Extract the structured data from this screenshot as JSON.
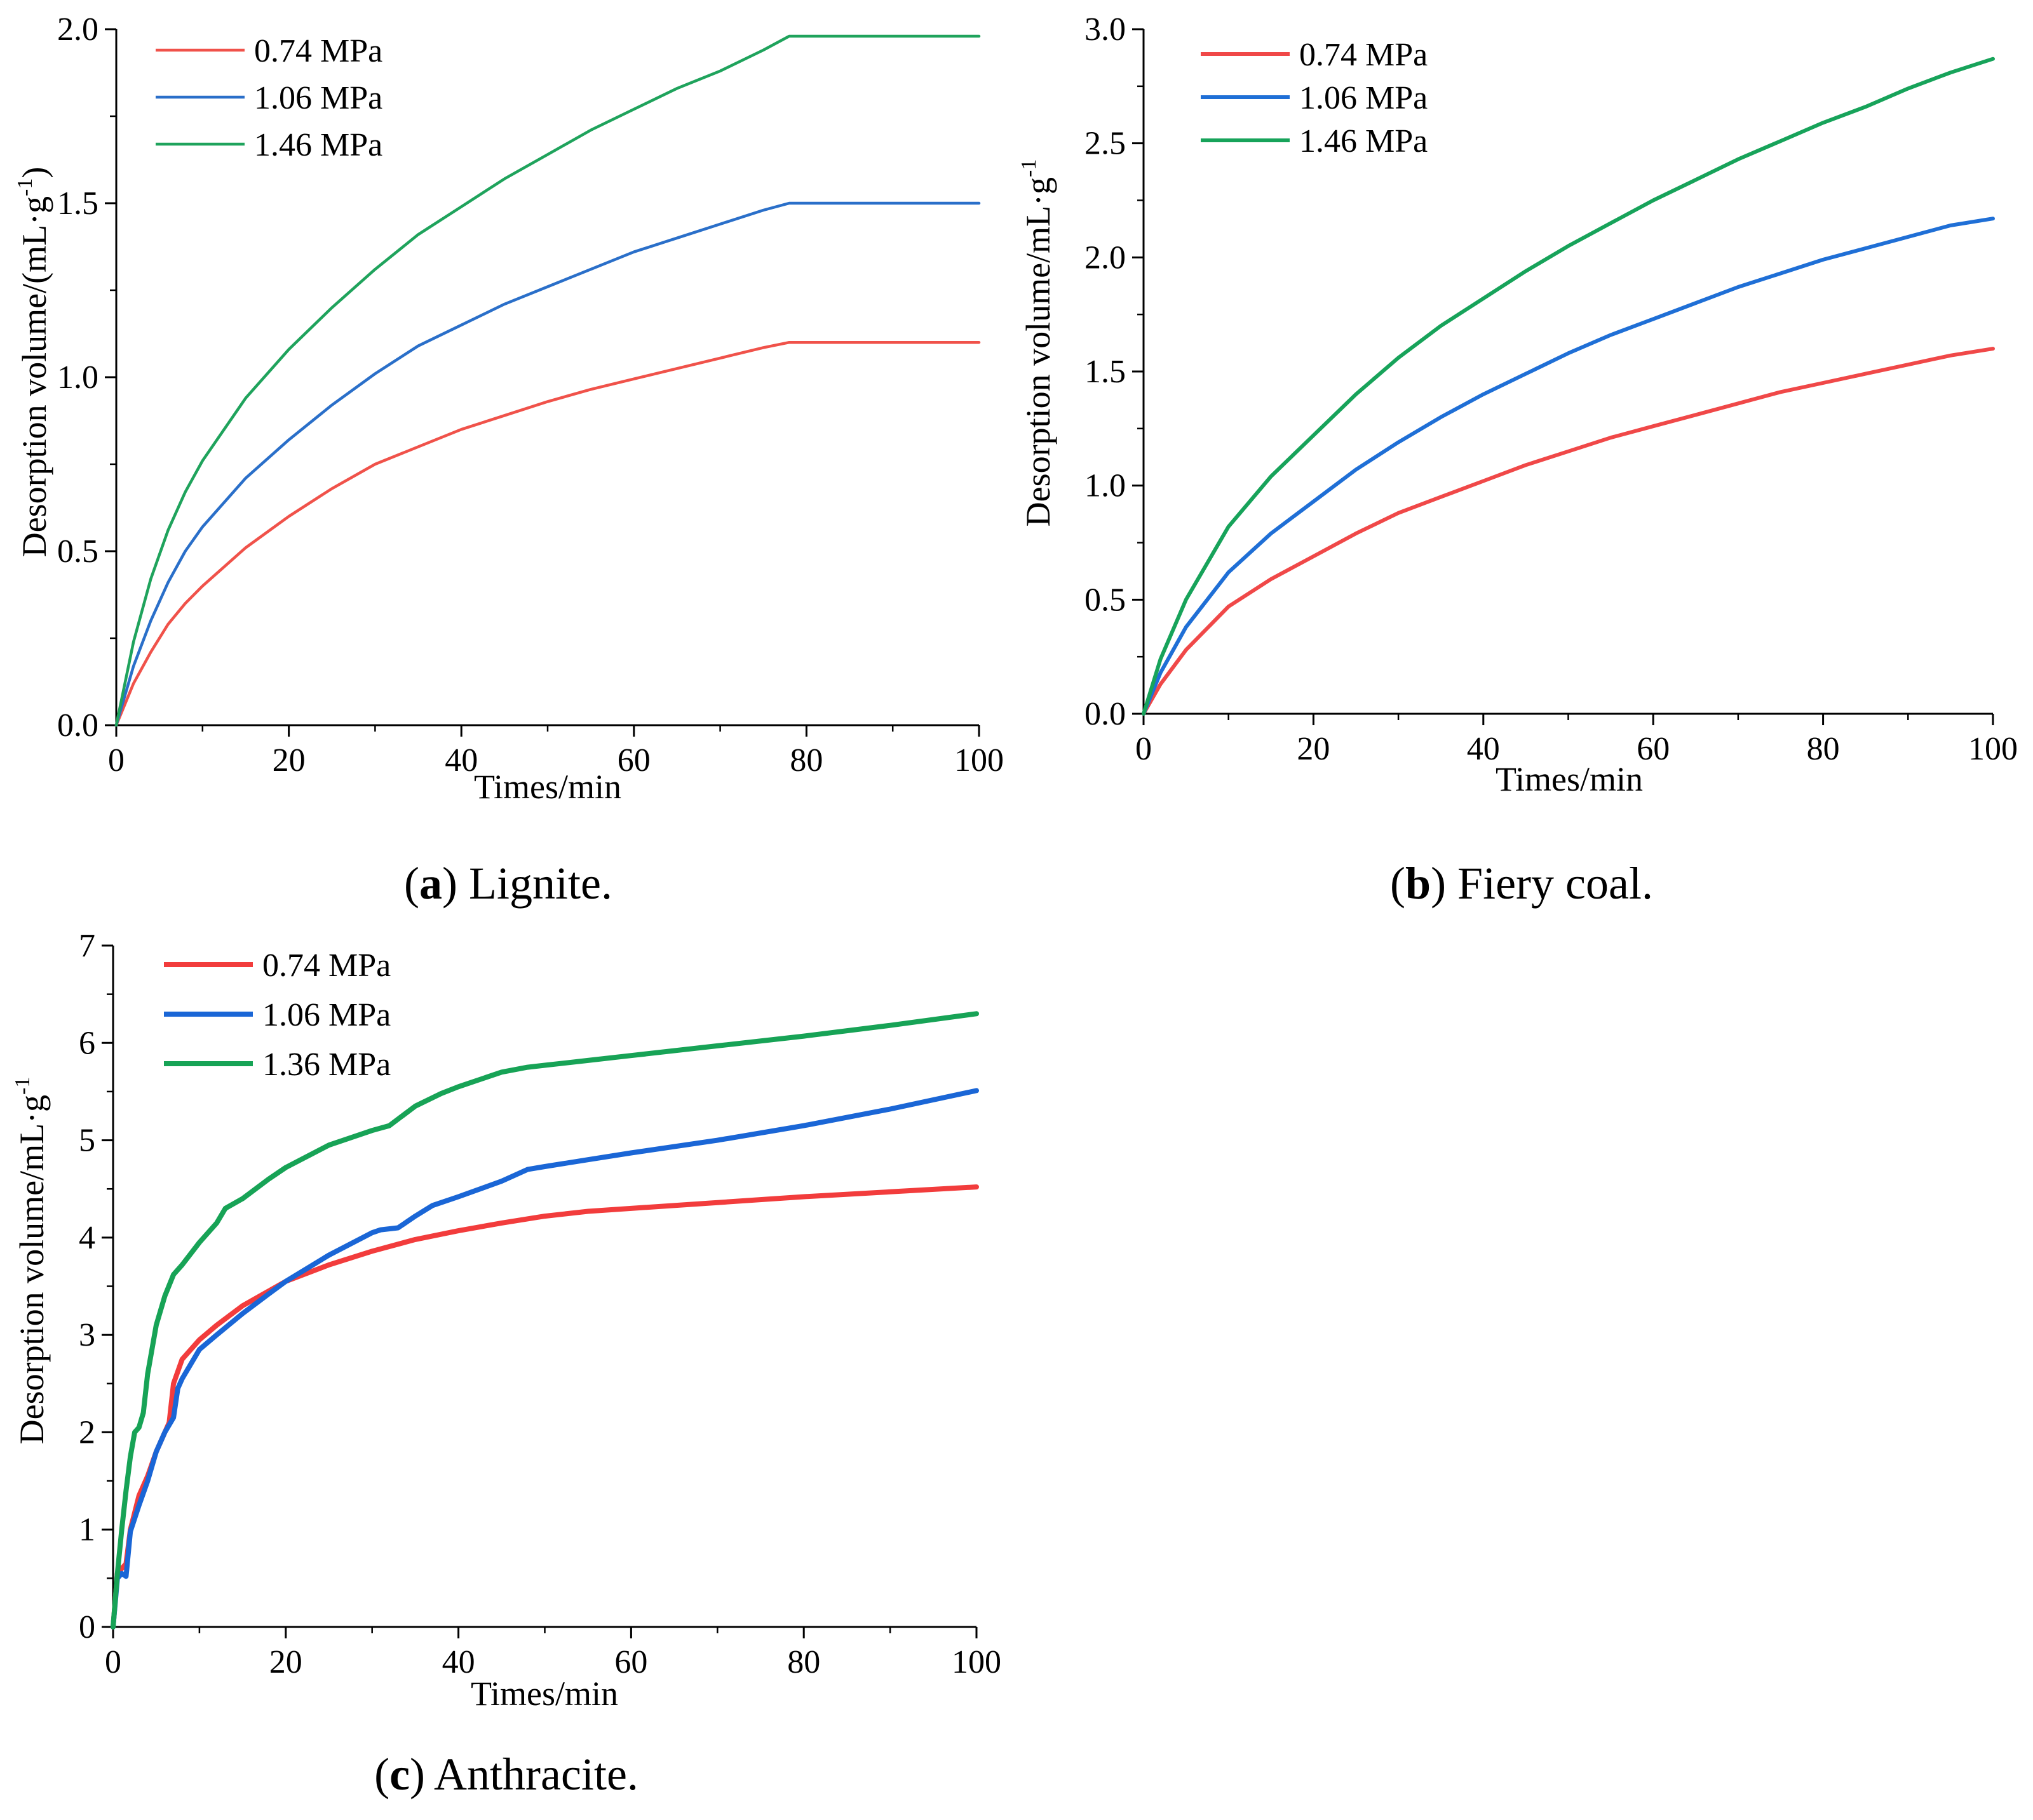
{
  "figure": {
    "panels": [
      "a",
      "b",
      "c"
    ]
  },
  "chart_data": [
    {
      "id": "a",
      "type": "line",
      "caption_letter": "a",
      "caption_text": " Lignite.",
      "caption_open": "(",
      "caption_close": ")",
      "xlabel": "Times/min",
      "ylabel": "Desorption volume/(mL·g",
      "ylabel_sup": "-1",
      "ylabel_close": ")",
      "xlim": [
        0,
        100
      ],
      "ylim": [
        0,
        2.0
      ],
      "xticks": [
        0,
        20,
        40,
        60,
        80,
        100
      ],
      "yticks": [
        0.0,
        0.5,
        1.0,
        1.5,
        2.0
      ],
      "ytick_labels": [
        "0.0",
        "0.5",
        "1.0",
        "1.5",
        "2.0"
      ],
      "legend_position": "top-left",
      "series": [
        {
          "name": "0.74 MPa",
          "color": "#f0524a",
          "x": [
            0,
            2,
            4,
            6,
            8,
            10,
            15,
            20,
            25,
            30,
            35,
            40,
            45,
            50,
            55,
            60,
            65,
            70,
            75,
            78,
            85,
            90,
            100
          ],
          "y": [
            0,
            0.12,
            0.21,
            0.29,
            0.35,
            0.4,
            0.51,
            0.6,
            0.68,
            0.75,
            0.8,
            0.85,
            0.89,
            0.93,
            0.965,
            0.995,
            1.025,
            1.055,
            1.085,
            1.1,
            1.1,
            1.1,
            1.1
          ]
        },
        {
          "name": "1.06 MPa",
          "color": "#2a6fc9",
          "x": [
            0,
            2,
            4,
            6,
            8,
            10,
            15,
            20,
            25,
            30,
            35,
            40,
            45,
            50,
            55,
            60,
            65,
            70,
            75,
            78,
            85,
            90,
            100
          ],
          "y": [
            0,
            0.17,
            0.3,
            0.41,
            0.5,
            0.57,
            0.71,
            0.82,
            0.92,
            1.01,
            1.09,
            1.15,
            1.21,
            1.26,
            1.31,
            1.36,
            1.4,
            1.44,
            1.48,
            1.5,
            1.5,
            1.5,
            1.5
          ]
        },
        {
          "name": "1.46 MPa",
          "color": "#1fa35c",
          "x": [
            0,
            2,
            4,
            6,
            8,
            10,
            15,
            20,
            25,
            30,
            35,
            40,
            45,
            50,
            55,
            60,
            65,
            70,
            75,
            78,
            85,
            90,
            100
          ],
          "y": [
            0,
            0.24,
            0.42,
            0.56,
            0.67,
            0.76,
            0.94,
            1.08,
            1.2,
            1.31,
            1.41,
            1.49,
            1.57,
            1.64,
            1.71,
            1.77,
            1.83,
            1.88,
            1.94,
            1.98,
            1.98,
            1.98,
            1.98
          ]
        }
      ]
    },
    {
      "id": "b",
      "type": "line",
      "caption_letter": "b",
      "caption_text": " Fiery coal.",
      "caption_open": "(",
      "caption_close": ")",
      "xlabel": "Times/min",
      "ylabel": "Desorption volume/mL·g",
      "ylabel_sup": "-1",
      "ylabel_close": "",
      "xlim": [
        0,
        100
      ],
      "ylim": [
        0,
        3.0
      ],
      "xticks": [
        0,
        20,
        40,
        60,
        80,
        100
      ],
      "yticks": [
        0.0,
        0.5,
        1.0,
        1.5,
        2.0,
        2.5,
        3.0
      ],
      "ytick_labels": [
        "0.0",
        "0.5",
        "1.0",
        "1.5",
        "2.0",
        "2.5",
        "3.0"
      ],
      "legend_position": "top-left",
      "series": [
        {
          "name": "0.74 MPa",
          "color": "#f04848",
          "x": [
            0,
            2,
            5,
            10,
            15,
            20,
            25,
            30,
            35,
            40,
            45,
            50,
            55,
            60,
            65,
            70,
            75,
            80,
            85,
            90,
            95,
            100
          ],
          "y": [
            0,
            0.13,
            0.28,
            0.47,
            0.59,
            0.69,
            0.79,
            0.88,
            0.95,
            1.02,
            1.09,
            1.15,
            1.21,
            1.26,
            1.31,
            1.36,
            1.41,
            1.45,
            1.49,
            1.53,
            1.57,
            1.6
          ]
        },
        {
          "name": "1.06 MPa",
          "color": "#1f6fd6",
          "x": [
            0,
            2,
            5,
            10,
            15,
            20,
            25,
            30,
            35,
            40,
            45,
            50,
            55,
            60,
            65,
            70,
            75,
            80,
            85,
            90,
            95,
            100
          ],
          "y": [
            0,
            0.18,
            0.38,
            0.62,
            0.79,
            0.93,
            1.07,
            1.19,
            1.3,
            1.4,
            1.49,
            1.58,
            1.66,
            1.73,
            1.8,
            1.87,
            1.93,
            1.99,
            2.04,
            2.09,
            2.14,
            2.17
          ]
        },
        {
          "name": "1.46 MPa",
          "color": "#17a35a",
          "x": [
            0,
            2,
            5,
            10,
            15,
            20,
            25,
            30,
            35,
            40,
            45,
            50,
            55,
            60,
            65,
            70,
            75,
            80,
            85,
            90,
            95,
            100
          ],
          "y": [
            0,
            0.24,
            0.5,
            0.82,
            1.04,
            1.22,
            1.4,
            1.56,
            1.7,
            1.82,
            1.94,
            2.05,
            2.15,
            2.25,
            2.34,
            2.43,
            2.51,
            2.59,
            2.66,
            2.74,
            2.81,
            2.87
          ]
        }
      ]
    },
    {
      "id": "c",
      "type": "line",
      "caption_letter": "c",
      "caption_text": " Anthracite.",
      "caption_open": "(",
      "caption_close": ")",
      "xlabel": "Times/min",
      "ylabel": "Desorption volume/mL·g",
      "ylabel_sup": "-1",
      "ylabel_close": "",
      "xlim": [
        0,
        100
      ],
      "ylim": [
        0,
        7
      ],
      "xticks": [
        0,
        20,
        40,
        60,
        80,
        100
      ],
      "yticks": [
        0,
        1,
        2,
        3,
        4,
        5,
        6,
        7
      ],
      "ytick_labels": [
        "0",
        "1",
        "2",
        "3",
        "4",
        "5",
        "6",
        "7"
      ],
      "legend_position": "top-left",
      "series": [
        {
          "name": "0.74 MPa",
          "color": "#f23c3c",
          "x": [
            0,
            0.5,
            1,
            1.5,
            2,
            3,
            4,
            5,
            6,
            6.5,
            7,
            8,
            10,
            12,
            15,
            18,
            20,
            25,
            30,
            35,
            40,
            45,
            50,
            55,
            60,
            70,
            80,
            90,
            100
          ],
          "y": [
            0,
            0.55,
            0.6,
            0.65,
            1.0,
            1.35,
            1.55,
            1.8,
            2.0,
            2.1,
            2.5,
            2.75,
            2.95,
            3.1,
            3.3,
            3.45,
            3.55,
            3.72,
            3.86,
            3.98,
            4.07,
            4.15,
            4.22,
            4.27,
            4.3,
            4.36,
            4.42,
            4.47,
            4.52
          ]
        },
        {
          "name": "1.06 MPa",
          "color": "#1a66d6",
          "x": [
            0,
            0.5,
            1,
            1.5,
            2,
            3,
            4,
            5,
            6,
            7,
            7.5,
            8,
            10,
            12,
            15,
            18,
            20,
            25,
            30,
            31,
            33,
            35,
            37,
            40,
            45,
            48,
            50,
            55,
            60,
            70,
            80,
            90,
            100
          ],
          "y": [
            0,
            0.5,
            0.55,
            0.52,
            0.98,
            1.25,
            1.5,
            1.8,
            2.0,
            2.15,
            2.45,
            2.55,
            2.85,
            3.0,
            3.22,
            3.42,
            3.55,
            3.82,
            4.05,
            4.08,
            4.1,
            4.22,
            4.33,
            4.42,
            4.58,
            4.7,
            4.73,
            4.8,
            4.87,
            5.0,
            5.15,
            5.32,
            5.51
          ]
        },
        {
          "name": "1.36 MPa",
          "color": "#17a356",
          "x": [
            0,
            0.5,
            1,
            1.5,
            2,
            2.5,
            3,
            3.5,
            4,
            5,
            6,
            7,
            8,
            10,
            12,
            13,
            15,
            18,
            20,
            25,
            30,
            32,
            35,
            38,
            40,
            45,
            48,
            50,
            55,
            60,
            70,
            80,
            90,
            100
          ],
          "y": [
            0,
            0.55,
            1.0,
            1.4,
            1.75,
            2.0,
            2.05,
            2.2,
            2.6,
            3.1,
            3.4,
            3.62,
            3.72,
            3.95,
            4.15,
            4.3,
            4.4,
            4.6,
            4.72,
            4.95,
            5.1,
            5.15,
            5.35,
            5.48,
            5.55,
            5.7,
            5.75,
            5.77,
            5.82,
            5.87,
            5.97,
            6.07,
            6.18,
            6.3
          ]
        }
      ]
    }
  ]
}
